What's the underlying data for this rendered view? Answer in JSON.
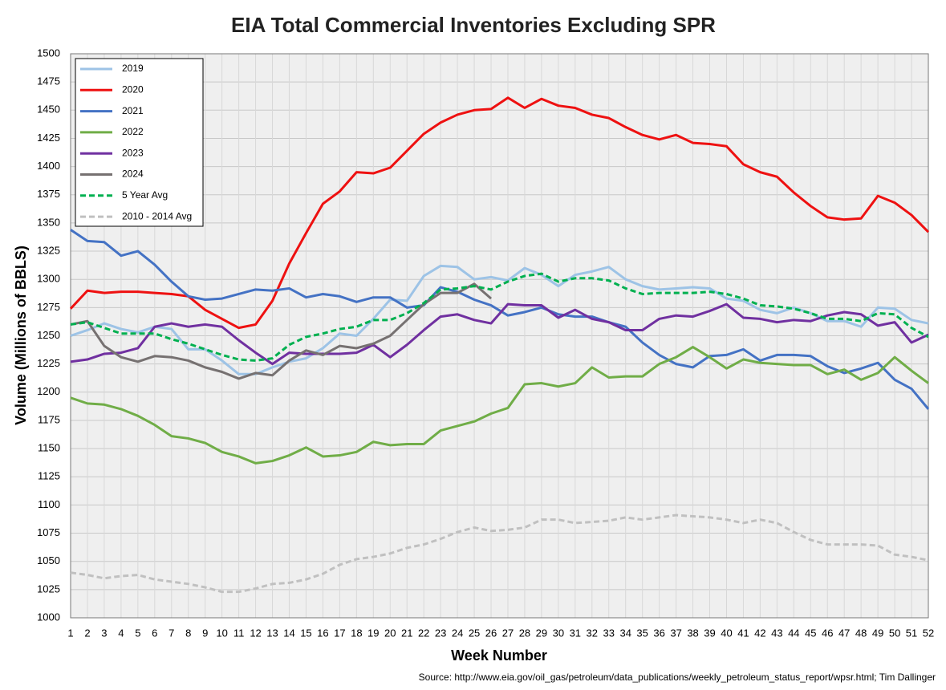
{
  "chart_data": {
    "type": "line",
    "title": "EIA Total Commercial Inventories Excluding SPR",
    "xlabel": "Week Number",
    "ylabel": "Volume (Millions of BBLS)",
    "source": "Source: http://www.eia.gov/oil_gas/petroleum/data_publications/weekly_petroleum_status_report/wpsr.html; Tim Dallinger",
    "x": [
      1,
      2,
      3,
      4,
      5,
      6,
      7,
      8,
      9,
      10,
      11,
      12,
      13,
      14,
      15,
      16,
      17,
      18,
      19,
      20,
      21,
      22,
      23,
      24,
      25,
      26,
      27,
      28,
      29,
      30,
      31,
      32,
      33,
      34,
      35,
      36,
      37,
      38,
      39,
      40,
      41,
      42,
      43,
      44,
      45,
      46,
      47,
      48,
      49,
      50,
      51,
      52
    ],
    "xlim": [
      1,
      52
    ],
    "ylim": [
      1000,
      1500
    ],
    "yticks": [
      1000,
      1025,
      1050,
      1075,
      1100,
      1125,
      1150,
      1175,
      1200,
      1225,
      1250,
      1275,
      1300,
      1325,
      1350,
      1375,
      1400,
      1425,
      1450,
      1475,
      1500
    ],
    "grid": true,
    "legend": "upper-left",
    "series": [
      {
        "name": "2019",
        "color": "#9dc3e6",
        "dashed": false,
        "values": [
          1250,
          1255,
          1261,
          1256,
          1253,
          1258,
          1256,
          1238,
          1238,
          1228,
          1216,
          1216,
          1222,
          1227,
          1230,
          1239,
          1252,
          1250,
          1265,
          1282,
          1281,
          1303,
          1312,
          1311,
          1300,
          1302,
          1299,
          1310,
          1304,
          1294,
          1304,
          1307,
          1311,
          1300,
          1294,
          1291,
          1292,
          1293,
          1292,
          1283,
          1281,
          1273,
          1270,
          1275,
          1270,
          1263,
          1263,
          1258,
          1275,
          1274,
          1264,
          1261
        ]
      },
      {
        "name": "2020",
        "color": "#ee1111",
        "dashed": false,
        "values": [
          1274,
          1290,
          1288,
          1289,
          1289,
          1288,
          1287,
          1285,
          1273,
          1265,
          1257,
          1260,
          1281,
          1314,
          1341,
          1367,
          1378,
          1395,
          1394,
          1399,
          1414,
          1429,
          1439,
          1446,
          1450,
          1451,
          1461,
          1452,
          1460,
          1454,
          1452,
          1446,
          1443,
          1435,
          1428,
          1424,
          1428,
          1421,
          1420,
          1418,
          1402,
          1395,
          1391,
          1377,
          1365,
          1355,
          1353,
          1354,
          1374,
          1368,
          1357,
          1342
        ]
      },
      {
        "name": "2021",
        "color": "#4472c4",
        "dashed": false,
        "values": [
          1344,
          1334,
          1333,
          1321,
          1325,
          1313,
          1298,
          1285,
          1282,
          1283,
          1287,
          1291,
          1290,
          1292,
          1284,
          1287,
          1285,
          1280,
          1284,
          1284,
          1275,
          1277,
          1293,
          1289,
          1282,
          1277,
          1268,
          1271,
          1275,
          1269,
          1267,
          1267,
          1262,
          1258,
          1244,
          1233,
          1225,
          1222,
          1232,
          1233,
          1238,
          1228,
          1233,
          1233,
          1232,
          1223,
          1217,
          1221,
          1226,
          1211,
          1203,
          1185
        ]
      },
      {
        "name": "2022",
        "color": "#70ad47",
        "dashed": false,
        "values": [
          1195,
          1190,
          1189,
          1185,
          1179,
          1171,
          1161,
          1159,
          1155,
          1147,
          1143,
          1137,
          1139,
          1144,
          1151,
          1143,
          1144,
          1147,
          1156,
          1153,
          1154,
          1154,
          1166,
          1170,
          1174,
          1181,
          1186,
          1207,
          1208,
          1205,
          1208,
          1222,
          1213,
          1214,
          1214,
          1225,
          1231,
          1240,
          1231,
          1221,
          1229,
          1226,
          1225,
          1224,
          1224,
          1216,
          1220,
          1211,
          1217,
          1231,
          1219,
          1208
        ]
      },
      {
        "name": "2023",
        "color": "#7030a0",
        "dashed": false,
        "values": [
          1227,
          1229,
          1234,
          1235,
          1239,
          1258,
          1261,
          1258,
          1260,
          1258,
          1246,
          1235,
          1225,
          1235,
          1234,
          1234,
          1234,
          1235,
          1242,
          1231,
          1242,
          1255,
          1267,
          1269,
          1264,
          1261,
          1278,
          1277,
          1277,
          1266,
          1273,
          1265,
          1262,
          1255,
          1255,
          1265,
          1268,
          1267,
          1272,
          1278,
          1266,
          1265,
          1262,
          1264,
          1263,
          1268,
          1271,
          1269,
          1259,
          1262,
          1244,
          1251
        ]
      },
      {
        "name": "2024",
        "color": "#767171",
        "dashed": false,
        "values": [
          1260,
          1263,
          1241,
          1231,
          1227,
          1232,
          1231,
          1228,
          1222,
          1218,
          1212,
          1217,
          1215,
          1228,
          1237,
          1233,
          1241,
          1239,
          1243,
          1250,
          1264,
          1278,
          1288,
          1288,
          1296,
          1283,
          null,
          null,
          null,
          null,
          null,
          null,
          null,
          null,
          null,
          null,
          null,
          null,
          null,
          null,
          null,
          null,
          null,
          null,
          null,
          null,
          null,
          null,
          null,
          null,
          null,
          null
        ]
      },
      {
        "name": "5 Year Avg",
        "color": "#00b050",
        "dashed": true,
        "values": [
          1260,
          1262,
          1257,
          1252,
          1252,
          1252,
          1247,
          1243,
          1238,
          1233,
          1229,
          1228,
          1230,
          1242,
          1249,
          1252,
          1256,
          1258,
          1264,
          1264,
          1270,
          1279,
          1291,
          1292,
          1294,
          1291,
          1298,
          1303,
          1305,
          1298,
          1301,
          1301,
          1299,
          1292,
          1287,
          1288,
          1288,
          1288,
          1289,
          1287,
          1283,
          1277,
          1276,
          1274,
          1270,
          1265,
          1265,
          1263,
          1270,
          1269,
          1257,
          1249
        ]
      },
      {
        "name": "2010 - 2014 Avg",
        "color": "#c0c0c0",
        "dashed": true,
        "values": [
          1040,
          1038,
          1035,
          1037,
          1038,
          1034,
          1032,
          1030,
          1027,
          1023,
          1023,
          1026,
          1030,
          1031,
          1034,
          1039,
          1047,
          1052,
          1054,
          1057,
          1062,
          1065,
          1070,
          1076,
          1080,
          1077,
          1078,
          1080,
          1087,
          1087,
          1084,
          1085,
          1086,
          1089,
          1087,
          1089,
          1091,
          1090,
          1089,
          1087,
          1084,
          1087,
          1084,
          1076,
          1069,
          1065,
          1065,
          1065,
          1064,
          1056,
          1054,
          1051
        ]
      }
    ]
  }
}
